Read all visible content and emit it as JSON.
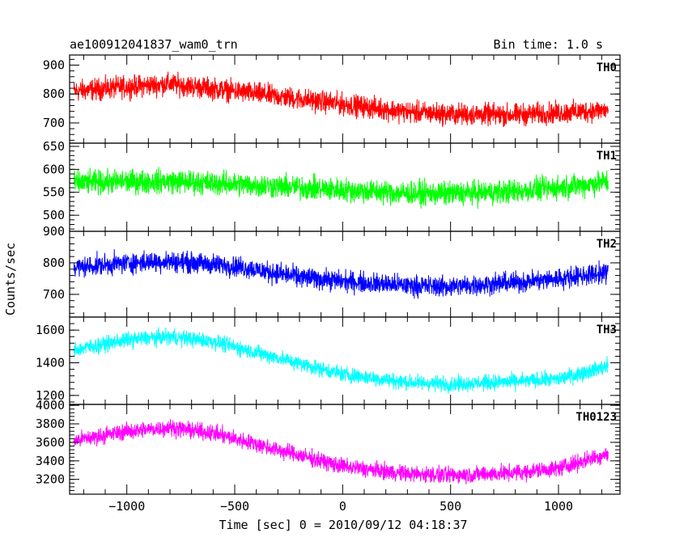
{
  "header": {
    "title": "ae100912041837_wam0_trn",
    "bin_time": "Bin time: 1.0 s"
  },
  "chart_data": {
    "type": "line",
    "xlabel": "Time [sec] 0 = 2010/09/12 04:18:37",
    "ylabel": "Counts/sec",
    "xlim": [
      -1265,
      1285
    ],
    "data_xrange": [
      -1245,
      1230
    ],
    "x_ticks": [
      -1000,
      -500,
      0,
      500,
      1000
    ],
    "x_tick_labels": [
      "−1000",
      "−500",
      "0",
      "500",
      "1000"
    ],
    "grid": false,
    "panels": [
      {
        "name": "TH0",
        "color": "#ff0000",
        "ylim": [
          630,
          935
        ],
        "y_ticks": [
          700,
          800,
          900
        ],
        "y_tick_labels": [
          "700",
          "800",
          "900"
        ],
        "trend": [
          [
            -1245,
            810
          ],
          [
            -1000,
            825
          ],
          [
            -800,
            835
          ],
          [
            -500,
            810
          ],
          [
            0,
            765
          ],
          [
            300,
            738
          ],
          [
            500,
            730
          ],
          [
            800,
            728
          ],
          [
            1000,
            735
          ],
          [
            1230,
            745
          ]
        ],
        "noise_halfwidth": 55
      },
      {
        "name": "TH1",
        "color": "#00ff00",
        "ylim": [
          465,
          657
        ],
        "y_ticks": [
          500,
          550,
          600,
          650
        ],
        "y_tick_labels": [
          "500",
          "550",
          "600",
          "650"
        ],
        "trend": [
          [
            -1245,
            570
          ],
          [
            -1000,
            573
          ],
          [
            -800,
            574
          ],
          [
            -500,
            568
          ],
          [
            0,
            555
          ],
          [
            300,
            548
          ],
          [
            500,
            547
          ],
          [
            800,
            552
          ],
          [
            1000,
            560
          ],
          [
            1230,
            573
          ]
        ],
        "noise_halfwidth": 38
      },
      {
        "name": "TH2",
        "color": "#0000ff",
        "ylim": [
          628,
          900
        ],
        "y_ticks": [
          700,
          800,
          900
        ],
        "y_tick_labels": [
          "700",
          "800",
          "900"
        ],
        "trend": [
          [
            -1245,
            785
          ],
          [
            -1000,
            800
          ],
          [
            -800,
            805
          ],
          [
            -500,
            790
          ],
          [
            -200,
            755
          ],
          [
            0,
            742
          ],
          [
            300,
            728
          ],
          [
            500,
            725
          ],
          [
            800,
            738
          ],
          [
            1000,
            750
          ],
          [
            1230,
            770
          ]
        ],
        "noise_halfwidth": 48
      },
      {
        "name": "TH3",
        "color": "#00ffff",
        "ylim": [
          1145,
          1680
        ],
        "y_ticks": [
          1200,
          1400,
          1600
        ],
        "y_tick_labels": [
          "1200",
          "1400",
          "1600"
        ],
        "trend": [
          [
            -1245,
            1480
          ],
          [
            -1000,
            1540
          ],
          [
            -800,
            1560
          ],
          [
            -600,
            1530
          ],
          [
            -300,
            1430
          ],
          [
            0,
            1330
          ],
          [
            300,
            1280
          ],
          [
            500,
            1270
          ],
          [
            800,
            1285
          ],
          [
            1000,
            1300
          ],
          [
            1230,
            1380
          ]
        ],
        "noise_halfwidth": 70
      },
      {
        "name": "TH0123",
        "color": "#ff00ff",
        "ylim": [
          3040,
          4010
        ],
        "y_ticks": [
          3200,
          3400,
          3600,
          3800,
          4000
        ],
        "y_tick_labels": [
          "3200",
          "3400",
          "3600",
          "3800",
          "4000"
        ],
        "trend": [
          [
            -1245,
            3620
          ],
          [
            -1000,
            3720
          ],
          [
            -800,
            3760
          ],
          [
            -600,
            3700
          ],
          [
            -300,
            3520
          ],
          [
            0,
            3340
          ],
          [
            300,
            3260
          ],
          [
            500,
            3245
          ],
          [
            800,
            3270
          ],
          [
            1000,
            3320
          ],
          [
            1230,
            3480
          ]
        ],
        "noise_halfwidth": 130
      }
    ]
  }
}
